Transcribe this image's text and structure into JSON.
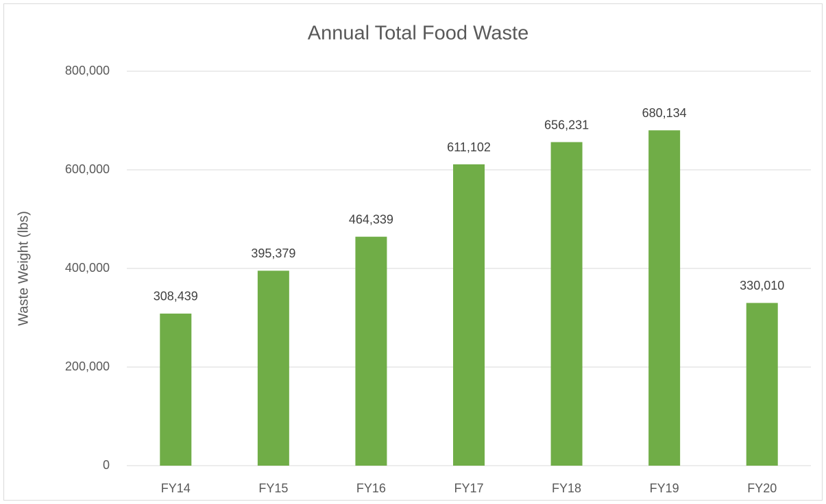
{
  "chart_data": {
    "type": "bar",
    "title": "Annual Total Food Waste",
    "y_label": "Waste Weight (lbs)",
    "categories": [
      "FY14",
      "FY15",
      "FY16",
      "FY17",
      "FY18",
      "FY19",
      "FY20"
    ],
    "values": [
      308439,
      395379,
      464339,
      611102,
      656231,
      680134,
      330010
    ],
    "value_labels": [
      "308,439",
      "395,379",
      "464,339",
      "611,102",
      "656,231",
      "680,134",
      "330,010"
    ],
    "color": "#70ad47",
    "ylim": [
      0,
      800000
    ],
    "yticks": [
      0,
      {
        "value": 200000,
        "label": "200,000"
      },
      {
        "value": 400000,
        "label": "400,000"
      },
      {
        "value": 600000,
        "label": "600,000"
      },
      {
        "value": 800000,
        "label": "800,000"
      }
    ],
    "grid": true
  }
}
